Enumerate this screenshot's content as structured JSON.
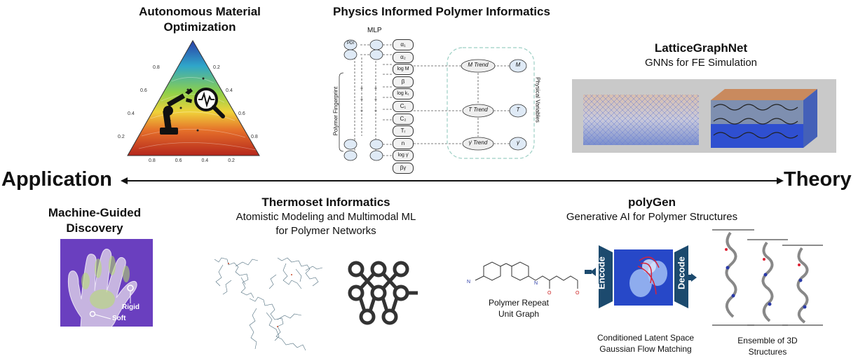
{
  "axis": {
    "left": "Application",
    "right": "Theory"
  },
  "autonomous": {
    "title_line1": "Autonomous Material",
    "title_line2": "Optimization",
    "tick_labels": {
      "left": [
        "0.8",
        "0.6",
        "0.4",
        "0.2"
      ],
      "right": [
        "0.2",
        "0.4",
        "0.6",
        "0.8"
      ],
      "bottom": [
        "0.8",
        "0.6",
        "0.4",
        "0.2"
      ]
    }
  },
  "pipi": {
    "title": "Physics Informed Polymer Informatics",
    "mlp": "MLP",
    "fingerprint": "Polymer Fingerprint",
    "physical_variables": "Physical Variables",
    "pdi": "PDI",
    "outputs": [
      "α₁",
      "α₂",
      "log M",
      "β",
      "log k₁",
      "C₁",
      "C₂",
      "Tᵣ",
      "n",
      "log γ̇",
      "βγ"
    ],
    "trends": [
      "M Trend",
      "T Trend",
      "γ̇ Trend"
    ],
    "variables": [
      "M",
      "T",
      "γ̇"
    ]
  },
  "lattice": {
    "title": "LatticeGraphNet",
    "subtitle": "GNNs for FE Simulation"
  },
  "machine": {
    "title_line1": "Machine-Guided",
    "title_line2": "Discovery",
    "label_rigid": "Rigid",
    "label_soft": "Soft"
  },
  "thermoset": {
    "title": "Thermoset Informatics",
    "sub_line1": "Atomistic Modeling and Multimodal ML",
    "sub_line2": "for Polymer Networks"
  },
  "polygen": {
    "title": "polyGen",
    "subtitle": "Generative AI for Polymer Structures",
    "repeat_line1": "Polymer Repeat",
    "repeat_line2": "Unit Graph",
    "encode": "Encode",
    "decode": "Decode",
    "latent_line1": "Conditioned Latent Space",
    "latent_line2": "Gaussian Flow Matching",
    "ensemble_line1": "Ensemble of 3D",
    "ensemble_line2": "Structures"
  },
  "colors": {
    "navy": "#1f3a5f",
    "encode_block": "#1c4a6e",
    "latent_bg": "#2748c8",
    "hand_bg": "#6a3fbf",
    "lattice_bg": "#c9c9c9"
  }
}
